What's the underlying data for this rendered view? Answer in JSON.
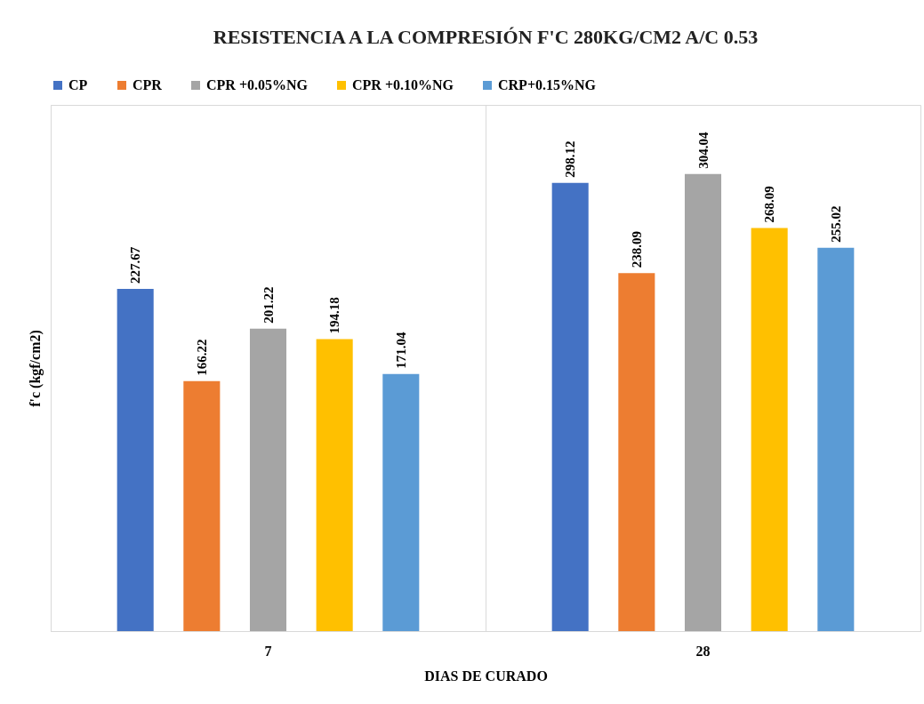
{
  "chart_data": {
    "type": "bar",
    "title": "RESISTENCIA A LA COMPRESIÓN F'C 280KG/CM2 A/C 0.53",
    "xlabel": "DIAS DE CURADO",
    "ylabel": "f'c (kgf/cm2)",
    "categories": [
      "7",
      "28"
    ],
    "series": [
      {
        "name": "CP",
        "color": "#4472c4",
        "values": [
          227.67,
          298.12
        ]
      },
      {
        "name": "CPR",
        "color": "#ed7d31",
        "values": [
          166.22,
          238.09
        ]
      },
      {
        "name": "CPR +0.05%NG",
        "color": "#a5a5a5",
        "values": [
          201.22,
          304.04
        ]
      },
      {
        "name": "CPR +0.10%NG",
        "color": "#ffc000",
        "values": [
          194.18,
          268.09
        ]
      },
      {
        "name": "CRP+0.15%NG",
        "color": "#5b9bd5",
        "values": [
          171.04,
          255.02
        ]
      }
    ],
    "ylim": [
      0,
      350
    ],
    "tick_labels": "x",
    "data_labels": true,
    "grid": "x",
    "legend": "top"
  }
}
